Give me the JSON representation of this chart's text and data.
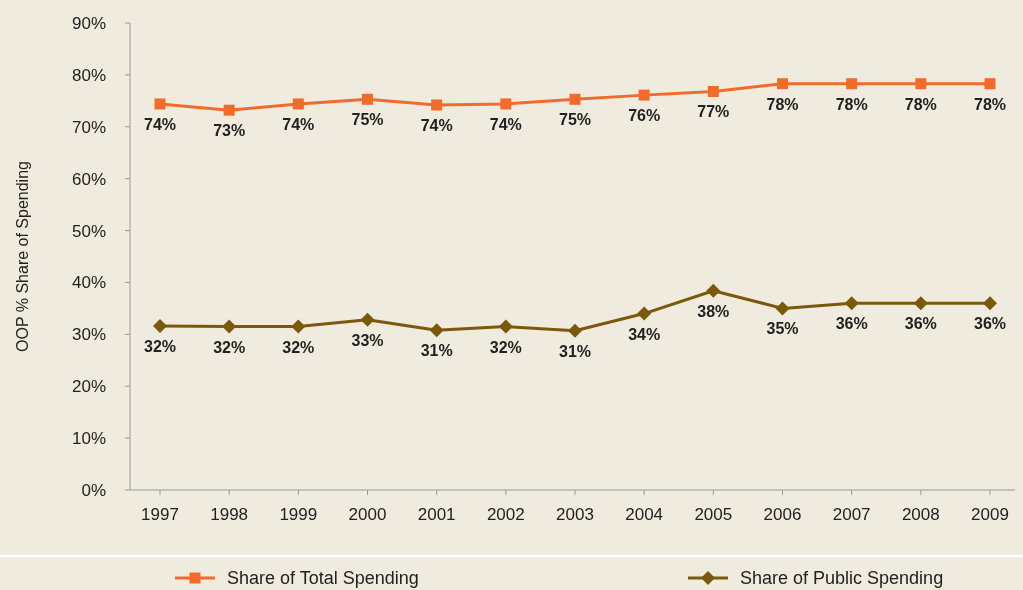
{
  "chart_data": {
    "type": "line",
    "ylabel": "OOP % Share of Spending",
    "categories": [
      "1997",
      "1998",
      "1999",
      "2000",
      "2001",
      "2002",
      "2003",
      "2004",
      "2005",
      "2006",
      "2007",
      "2008",
      "2009"
    ],
    "series": [
      {
        "name": "Share of Total Spending",
        "color": "#f26b2a",
        "marker": "square",
        "values": [
          74.4,
          73.2,
          74.4,
          75.3,
          74.2,
          74.4,
          75.3,
          76.1,
          76.8,
          78.3,
          78.3,
          78.3,
          78.3
        ],
        "value_labels": [
          "74%",
          "73%",
          "74%",
          "75%",
          "74%",
          "74%",
          "75%",
          "76%",
          "77%",
          "78%",
          "78%",
          "78%",
          "78%"
        ]
      },
      {
        "name": "Share of Public Spending",
        "color": "#7a5a0a",
        "marker": "diamond",
        "values": [
          31.6,
          31.5,
          31.5,
          32.8,
          30.8,
          31.5,
          30.7,
          34,
          38.4,
          35,
          36,
          36,
          36
        ],
        "value_labels": [
          "32%",
          "32%",
          "32%",
          "33%",
          "31%",
          "32%",
          "31%",
          "34%",
          "38%",
          "35%",
          "36%",
          "36%",
          "36%"
        ]
      }
    ],
    "ylim": [
      0,
      90
    ],
    "yticks": [
      {
        "value": 0,
        "label": "0%"
      },
      {
        "value": 10,
        "label": "10%"
      },
      {
        "value": 20,
        "label": "20%"
      },
      {
        "value": 30,
        "label": "30%"
      },
      {
        "value": 40,
        "label": "40%"
      },
      {
        "value": 50,
        "label": "50%"
      },
      {
        "value": 60,
        "label": "60%"
      },
      {
        "value": 70,
        "label": "70%"
      },
      {
        "value": 80,
        "label": "80%"
      },
      {
        "value": 90,
        "label": "90%"
      }
    ],
    "grid": false,
    "legend": "bottom",
    "line_style": "solid"
  }
}
